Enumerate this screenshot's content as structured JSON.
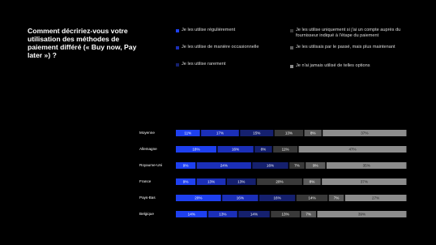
{
  "chart_data": {
    "type": "stacked-bar",
    "title": "Comment décririez-vous votre utilisation des méthodes de paiement différé (« Buy now, Pay later ») ?",
    "categories": [
      "Moyenne",
      "Allemagne",
      "Royaume-Uni",
      "France",
      "Pays-Bas",
      "Belgique"
    ],
    "series": [
      {
        "name": "Je les utilise régulièrement",
        "color": "#1e40f0",
        "values": [
          11,
          18,
          9,
          9,
          20,
          14
        ],
        "value_labels": [
          "11%",
          "18%",
          "9%",
          "9%",
          "20%",
          "14%"
        ]
      },
      {
        "name": "Je les utilise de manière occasionnelle",
        "color": "#1b2fb8",
        "values": [
          17,
          16,
          24,
          13,
          16,
          13
        ],
        "value_labels": [
          "17%",
          "16%",
          "24%",
          "13%",
          "16%",
          "13%"
        ]
      },
      {
        "name": "Je les utilise rarement",
        "color": "#15206e",
        "values": [
          15,
          8,
          16,
          13,
          16,
          14
        ],
        "value_labels": [
          "15%",
          "8%",
          "16%",
          "13%",
          "16%",
          "14%"
        ]
      },
      {
        "name": "Je les utilise uniquement si j'ai un compte auprès du fournisseur indiqué à l'étape du paiement",
        "color": "#393939",
        "values": [
          13,
          11,
          7,
          20,
          14,
          13
        ],
        "value_labels": [
          "13%",
          "11%",
          "7%",
          "20%",
          "14%",
          "13%"
        ]
      },
      {
        "name": "Je les utilisais par le passé, mais plus maintenant",
        "color": "#5c5c5c",
        "values": [
          8,
          null,
          9,
          8,
          7,
          7
        ],
        "value_labels": [
          "8%",
          null,
          "9%",
          "8%",
          "7%",
          "7%"
        ]
      },
      {
        "name": "Je n'ai jamais utilisé de telles options",
        "color": "#8c8c8c",
        "values": [
          37,
          47,
          35,
          37,
          27,
          39
        ],
        "value_labels": [
          "37%",
          "47%",
          "35%",
          "37%",
          "27%",
          "39%"
        ]
      }
    ]
  }
}
